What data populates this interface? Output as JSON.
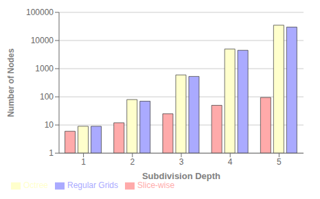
{
  "chart_data": {
    "type": "bar",
    "categories": [
      "1",
      "2",
      "3",
      "4",
      "5"
    ],
    "series": [
      {
        "name": "Slice-wise",
        "color": "#ffaaaa",
        "values": [
          6,
          12,
          25,
          50,
          95
        ]
      },
      {
        "name": "Octree",
        "color": "#ffffcc",
        "values": [
          9,
          80,
          600,
          5000,
          35000
        ]
      },
      {
        "name": "Regular Grids",
        "color": "#aaaaff",
        "values": [
          9,
          70,
          530,
          4500,
          30000
        ]
      }
    ],
    "x_label": "Subdivision Depth",
    "y_label": "Number of Nodes",
    "log": "y",
    "ylim": [
      1,
      100000
    ],
    "yticks": [
      1,
      10,
      100,
      1000,
      10000,
      100000
    ],
    "grid": true,
    "legend": "lower left"
  }
}
